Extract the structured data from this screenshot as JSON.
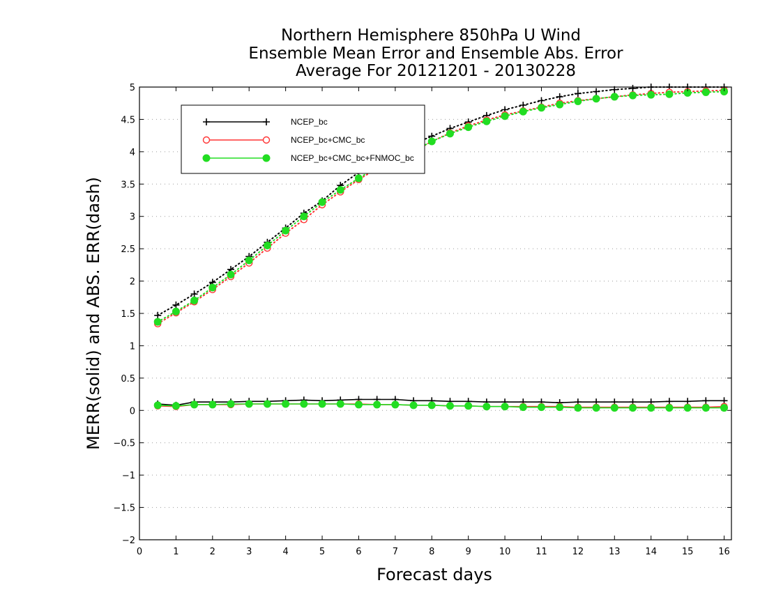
{
  "chart_data": {
    "type": "line",
    "title": [
      "Northern Hemisphere 850hPa U Wind",
      "Ensemble Mean Error and Ensemble Abs. Error",
      "Average For 20121201 - 20130228"
    ],
    "xlabel": "Forecast days",
    "ylabel": "MERR(solid) and ABS. ERR(dash)",
    "xlim": [
      0,
      16.2
    ],
    "ylim": [
      -2,
      5
    ],
    "xticks": [
      0,
      1,
      2,
      3,
      4,
      5,
      6,
      7,
      8,
      9,
      10,
      11,
      12,
      13,
      14,
      15,
      16
    ],
    "yticks": [
      -2,
      -1.5,
      -1,
      -0.5,
      0,
      0.5,
      1,
      1.5,
      2,
      2.5,
      3,
      3.5,
      4,
      4.5,
      5
    ],
    "ytick_labels": [
      "−2",
      "−1.5",
      "−1",
      "−0.5",
      "0",
      "0.5",
      "1",
      "1.5",
      "2",
      "2.5",
      "3",
      "3.5",
      "4",
      "4.5",
      "5"
    ],
    "grid": "horizontal-dotted",
    "legend_position": "top-left",
    "x": [
      0.5,
      1,
      1.5,
      2,
      2.5,
      3,
      3.5,
      4,
      4.5,
      5,
      5.5,
      6,
      6.5,
      7,
      7.5,
      8,
      8.5,
      9,
      9.5,
      10,
      10.5,
      11,
      11.5,
      12,
      12.5,
      13,
      13.5,
      14,
      14.5,
      15,
      15.5,
      16
    ],
    "series": [
      {
        "name": "NCEP_bc",
        "color": "#000000",
        "marker": "plus",
        "abs_error": [
          1.47,
          1.63,
          1.8,
          1.98,
          2.18,
          2.38,
          2.6,
          2.82,
          3.05,
          3.24,
          3.48,
          3.68,
          3.88,
          4.02,
          4.12,
          4.24,
          4.36,
          4.46,
          4.56,
          4.65,
          4.72,
          4.79,
          4.85,
          4.9,
          4.93,
          4.96,
          4.98,
          5.0,
          5.0,
          5.0,
          5.0,
          5.0
        ],
        "mean_error": [
          0.1,
          0.08,
          0.13,
          0.13,
          0.13,
          0.14,
          0.14,
          0.15,
          0.16,
          0.15,
          0.16,
          0.17,
          0.17,
          0.17,
          0.15,
          0.15,
          0.14,
          0.14,
          0.13,
          0.13,
          0.13,
          0.13,
          0.12,
          0.13,
          0.13,
          0.13,
          0.13,
          0.13,
          0.14,
          0.14,
          0.15,
          0.15
        ]
      },
      {
        "name": "NCEP_bc+CMC_bc",
        "color": "#ff3333",
        "marker": "open-circle",
        "abs_error": [
          1.34,
          1.51,
          1.68,
          1.87,
          2.07,
          2.28,
          2.51,
          2.74,
          2.95,
          3.18,
          3.38,
          3.57,
          3.74,
          3.88,
          4.0,
          4.16,
          4.29,
          4.4,
          4.49,
          4.57,
          4.63,
          4.69,
          4.75,
          4.79,
          4.82,
          4.85,
          4.88,
          4.9,
          4.92,
          4.93,
          4.94,
          4.95
        ],
        "mean_error": [
          0.07,
          0.06,
          0.09,
          0.09,
          0.09,
          0.1,
          0.1,
          0.1,
          0.1,
          0.1,
          0.1,
          0.1,
          0.09,
          0.09,
          0.08,
          0.08,
          0.07,
          0.07,
          0.06,
          0.06,
          0.06,
          0.06,
          0.06,
          0.05,
          0.05,
          0.05,
          0.05,
          0.05,
          0.05,
          0.05,
          0.05,
          0.06
        ]
      },
      {
        "name": "NCEP_bc+CMC_bc+FNMOC_bc",
        "color": "#22dd22",
        "marker": "filled-circle",
        "abs_error": [
          1.37,
          1.53,
          1.7,
          1.9,
          2.1,
          2.32,
          2.55,
          2.78,
          3.0,
          3.22,
          3.41,
          3.59,
          3.76,
          3.89,
          4.01,
          4.16,
          4.28,
          4.38,
          4.47,
          4.55,
          4.62,
          4.68,
          4.73,
          4.78,
          4.82,
          4.85,
          4.87,
          4.88,
          4.89,
          4.91,
          4.92,
          4.93
        ],
        "mean_error": [
          0.08,
          0.07,
          0.09,
          0.09,
          0.1,
          0.1,
          0.1,
          0.1,
          0.1,
          0.1,
          0.1,
          0.09,
          0.09,
          0.09,
          0.08,
          0.08,
          0.07,
          0.07,
          0.06,
          0.06,
          0.05,
          0.05,
          0.05,
          0.04,
          0.04,
          0.04,
          0.04,
          0.04,
          0.04,
          0.04,
          0.04,
          0.04
        ]
      }
    ]
  }
}
